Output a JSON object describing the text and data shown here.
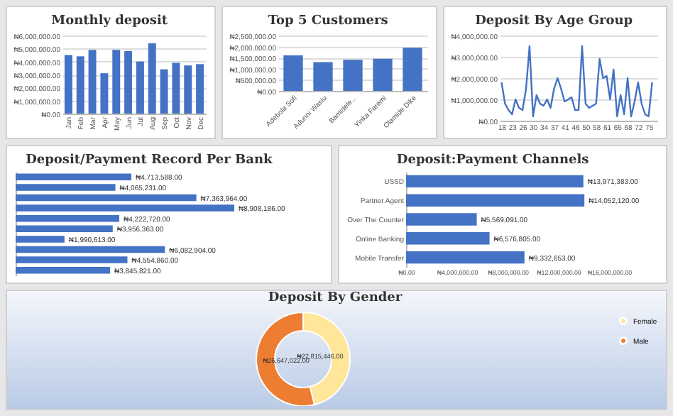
{
  "chart_data": [
    {
      "type": "bar",
      "title": "Monthly deposit",
      "categories": [
        "Jan",
        "Feb",
        "Mar",
        "Apr",
        "May",
        "Jun",
        "Jul",
        "Aug",
        "Sep",
        "Oct",
        "Nov",
        "Dec"
      ],
      "values": [
        4500000,
        4400000,
        4900000,
        3100000,
        4900000,
        4800000,
        4000000,
        5400000,
        3400000,
        3900000,
        3700000,
        3800000
      ],
      "color": "#4472c4",
      "ylim": [
        0,
        6000000
      ],
      "yticks": [
        {
          "value": 0,
          "label": "₦0.00"
        },
        {
          "value": 1000000,
          "label": "₦1,000,000.00"
        },
        {
          "value": 2000000,
          "label": "₦2,000,000.00"
        },
        {
          "value": 3000000,
          "label": "₦3,000,000.00"
        },
        {
          "value": 4000000,
          "label": "₦4,000,000.00"
        },
        {
          "value": 5000000,
          "label": "₦5,000,000.00"
        },
        {
          "value": 6000000,
          "label": "₦6,000,000.00"
        }
      ],
      "grid": "y"
    },
    {
      "type": "bar",
      "title": "Top 5 Customers",
      "categories": [
        "Adebola Sofi",
        "Adunni Wasiu",
        "Bamidele...",
        "Yinka Faremi",
        "Olamide Dike"
      ],
      "values": [
        1600000,
        1300000,
        1400000,
        1450000,
        1950000
      ],
      "color": "#4472c4",
      "ylim": [
        0,
        2500000
      ],
      "yticks": [
        {
          "value": 0,
          "label": "₦0.00"
        },
        {
          "value": 500000,
          "label": "₦500,000.00"
        },
        {
          "value": 1000000,
          "label": "₦1,000,000.00"
        },
        {
          "value": 1500000,
          "label": "₦1,500,000.00"
        },
        {
          "value": 2000000,
          "label": "₦2,000,000.00"
        },
        {
          "value": 2500000,
          "label": "₦2,500,000.00"
        }
      ],
      "grid": "y"
    },
    {
      "type": "line",
      "title": "Deposit By Age Group",
      "categories": [
        "18",
        null,
        null,
        "23",
        null,
        null,
        "26",
        null,
        null,
        "30",
        null,
        null,
        "34",
        null,
        null,
        "37",
        null,
        null,
        "41",
        null,
        null,
        "46",
        null,
        null,
        "50",
        null,
        null,
        "58",
        null,
        null,
        "61",
        null,
        null,
        "65",
        null,
        null,
        "68",
        null,
        null,
        "72",
        null,
        null,
        "75",
        null,
        null
      ],
      "values": [
        1800000,
        800000,
        500000,
        300000,
        1000000,
        600000,
        500000,
        1500000,
        3500000,
        200000,
        1200000,
        800000,
        700000,
        1000000,
        600000,
        1500000,
        2000000,
        1500000,
        900000,
        1000000,
        1100000,
        500000,
        500000,
        3500000,
        800000,
        600000,
        700000,
        800000,
        2900000,
        2000000,
        2100000,
        1000000,
        2400000,
        200000,
        1200000,
        300000,
        2000000,
        200000,
        900000,
        1800000,
        800000,
        300000,
        200000,
        1800000,
        null
      ],
      "color": "#4472c4",
      "ylim": [
        0,
        4000000
      ],
      "yticks": [
        {
          "value": 0,
          "label": "₦0.00"
        },
        {
          "value": 1000000,
          "label": "₦1,000,000.00"
        },
        {
          "value": 2000000,
          "label": "₦2,000,000.00"
        },
        {
          "value": 3000000,
          "label": "₦3,000,000.00"
        },
        {
          "value": 4000000,
          "label": "₦4,000,000.00"
        }
      ],
      "grid": "y"
    },
    {
      "type": "bar",
      "orientation": "horizontal",
      "title": "Deposit/Payment Record Per Bank",
      "categories": [
        null,
        null,
        null,
        null,
        null,
        null,
        null,
        null,
        null,
        null
      ],
      "values": [
        4713588,
        4065231,
        7363964,
        8908186,
        4222720,
        3956363,
        1990613,
        6082904,
        4554860,
        3845821
      ],
      "color": "#4472c4",
      "value_labels": [
        "₦4,713,588.00",
        "₦4,065,231.00",
        "₦7,363,964.00",
        "₦8,908,186.00",
        "₦4,222,720.00",
        "₦3,956,363.00",
        "₦1,990,613.00",
        "₦6,082,904.00",
        "₦4,554,860.00",
        "₦3,845,821.00"
      ]
    },
    {
      "type": "bar",
      "orientation": "horizontal",
      "title": "Deposit:Payment Channels",
      "categories": [
        "USSD",
        "Partner Agent",
        "Over The Counter",
        "Online Banking",
        "Mobile Transfer"
      ],
      "values": [
        13971383,
        14052120,
        5569091,
        6576805,
        9332653
      ],
      "color": "#4472c4",
      "value_labels": [
        "₦13,971,383.00",
        "₦14,052,120.00",
        "₦5,569,091.00",
        "₦6,576,805.00",
        "₦9,332,653.00"
      ],
      "xlim": [
        0,
        16000000
      ],
      "xticks": [
        {
          "value": 0,
          "label": "₦0.00"
        },
        {
          "value": 4000000,
          "label": "₦4,000,000.00"
        },
        {
          "value": 8000000,
          "label": "₦8,000,000.00"
        },
        {
          "value": 12000000,
          "label": "₦12,000,000.00"
        },
        {
          "value": 16000000,
          "label": "₦16,000,000.00"
        }
      ]
    },
    {
      "type": "donut",
      "title": "Deposit By Gender",
      "categories": [
        "Female",
        "Male"
      ],
      "values": [
        22815446,
        26647022
      ],
      "colors": [
        "#ffe699",
        "#ed7d31"
      ],
      "value_labels": [
        "₦22,815,446.00",
        "₦26,647,022.00"
      ],
      "legend": "right"
    }
  ]
}
